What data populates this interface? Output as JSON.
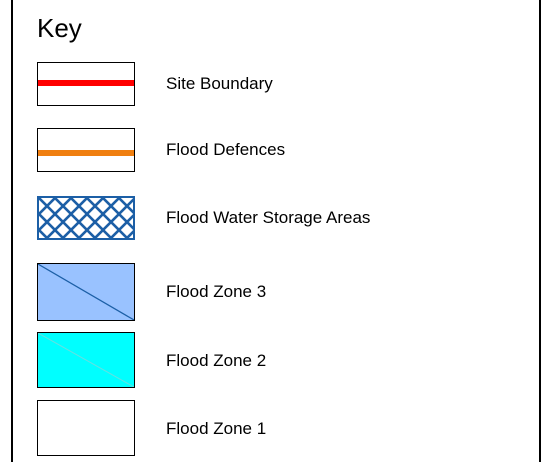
{
  "legend": {
    "title": "Key",
    "items": [
      {
        "label": "Site Boundary",
        "symbol": "line",
        "color": "#ff0000"
      },
      {
        "label": "Flood Defences",
        "symbol": "line",
        "color": "#f07f10"
      },
      {
        "label": "Flood Water Storage Areas",
        "symbol": "crosshatch",
        "color": "#1c5fa6"
      },
      {
        "label": "Flood Zone 3",
        "symbol": "fill-diagonal",
        "color": "#99c2ff",
        "line_color": "#1c5fa6"
      },
      {
        "label": "Flood Zone 2",
        "symbol": "fill-diagonal",
        "color": "#00ffff",
        "line_color": "#66e0e0"
      },
      {
        "label": "Flood Zone 1",
        "symbol": "empty",
        "color": "#ffffff"
      }
    ]
  }
}
